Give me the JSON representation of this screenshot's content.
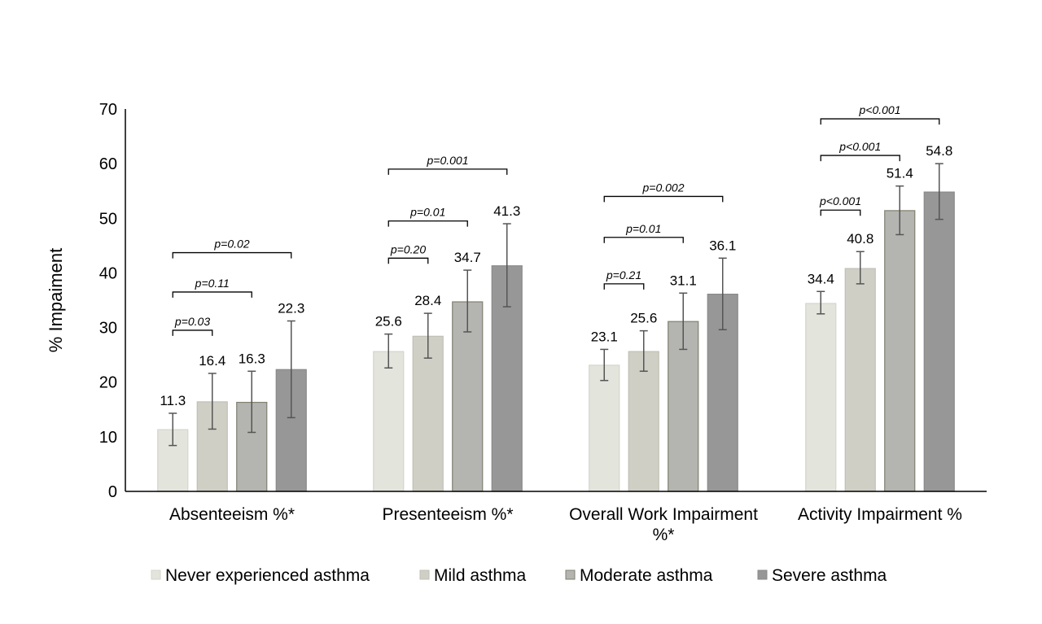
{
  "chart_data": {
    "type": "bar",
    "ylabel": "% Impaiment",
    "ylim": [
      0,
      70
    ],
    "yticks": [
      0,
      10,
      20,
      30,
      40,
      50,
      60,
      70
    ],
    "grid": false,
    "legend_position": "bottom",
    "categories": [
      [
        "Absenteeism %*"
      ],
      [
        "Presenteeism %*"
      ],
      [
        "Overall Work Impairment",
        "%*"
      ],
      [
        "Activity Impairment %"
      ]
    ],
    "series": [
      {
        "name": "Never experienced asthma",
        "color": "#e3e4dc",
        "stroke": "#d4d5cc",
        "values": [
          11.3,
          25.6,
          23.1,
          34.4
        ],
        "error_low": [
          8.4,
          22.6,
          20.3,
          32.5
        ],
        "error_high": [
          14.3,
          28.8,
          26.0,
          36.6
        ]
      },
      {
        "name": "Mild asthma",
        "color": "#cfcfc5",
        "stroke": "#c0c0b6",
        "values": [
          16.4,
          28.4,
          25.6,
          40.8
        ],
        "error_low": [
          11.4,
          24.4,
          22.0,
          38.0
        ],
        "error_high": [
          21.6,
          32.6,
          29.4,
          43.9
        ]
      },
      {
        "name": "Moderate asthma",
        "color": "#b4b4b1",
        "stroke": "#808070",
        "values": [
          16.3,
          34.7,
          31.1,
          51.4
        ],
        "error_low": [
          10.8,
          29.2,
          26.0,
          47.0
        ],
        "error_high": [
          22.0,
          40.5,
          36.3,
          55.9
        ]
      },
      {
        "name": "Severe asthma",
        "color": "#979797",
        "stroke": "#8a8a8a",
        "values": [
          22.3,
          41.3,
          36.1,
          54.8
        ],
        "error_low": [
          13.5,
          33.8,
          29.6,
          49.8
        ],
        "error_high": [
          31.2,
          49.0,
          42.7,
          60.0
        ]
      }
    ],
    "value_labels": [
      [
        "11.3",
        "25.6",
        "23.1",
        "34.4"
      ],
      [
        "16.4",
        "28.4",
        "25.6",
        "40.8"
      ],
      [
        "16.3",
        "34.7",
        "31.1",
        "51.4"
      ],
      [
        "22.3",
        "41.3",
        "36.1",
        "54.8"
      ]
    ],
    "significance": [
      {
        "category": 0,
        "from": 0,
        "to": 1,
        "level": 29.5,
        "label": "p=0.03"
      },
      {
        "category": 0,
        "from": 0,
        "to": 2,
        "level": 36.5,
        "label": "p=0.11"
      },
      {
        "category": 0,
        "from": 0,
        "to": 3,
        "level": 43.7,
        "label": "p=0.02"
      },
      {
        "category": 1,
        "from": 0,
        "to": 1,
        "level": 42.7,
        "label": "p=0.20"
      },
      {
        "category": 1,
        "from": 0,
        "to": 2,
        "level": 49.5,
        "label": "p=0.01"
      },
      {
        "category": 1,
        "from": 0,
        "to": 3,
        "level": 59.0,
        "label": "p=0.001"
      },
      {
        "category": 2,
        "from": 0,
        "to": 1,
        "level": 38.0,
        "label": "p=0.21"
      },
      {
        "category": 2,
        "from": 0,
        "to": 2,
        "level": 46.5,
        "label": "p=0.01"
      },
      {
        "category": 2,
        "from": 0,
        "to": 3,
        "level": 54.0,
        "label": "p=0.002"
      },
      {
        "category": 3,
        "from": 0,
        "to": 1,
        "level": 51.5,
        "label": "p<0.001"
      },
      {
        "category": 3,
        "from": 0,
        "to": 2,
        "level": 61.5,
        "label": "p<0.001"
      },
      {
        "category": 3,
        "from": 0,
        "to": 3,
        "level": 68.2,
        "label": "p<0.001"
      }
    ]
  }
}
